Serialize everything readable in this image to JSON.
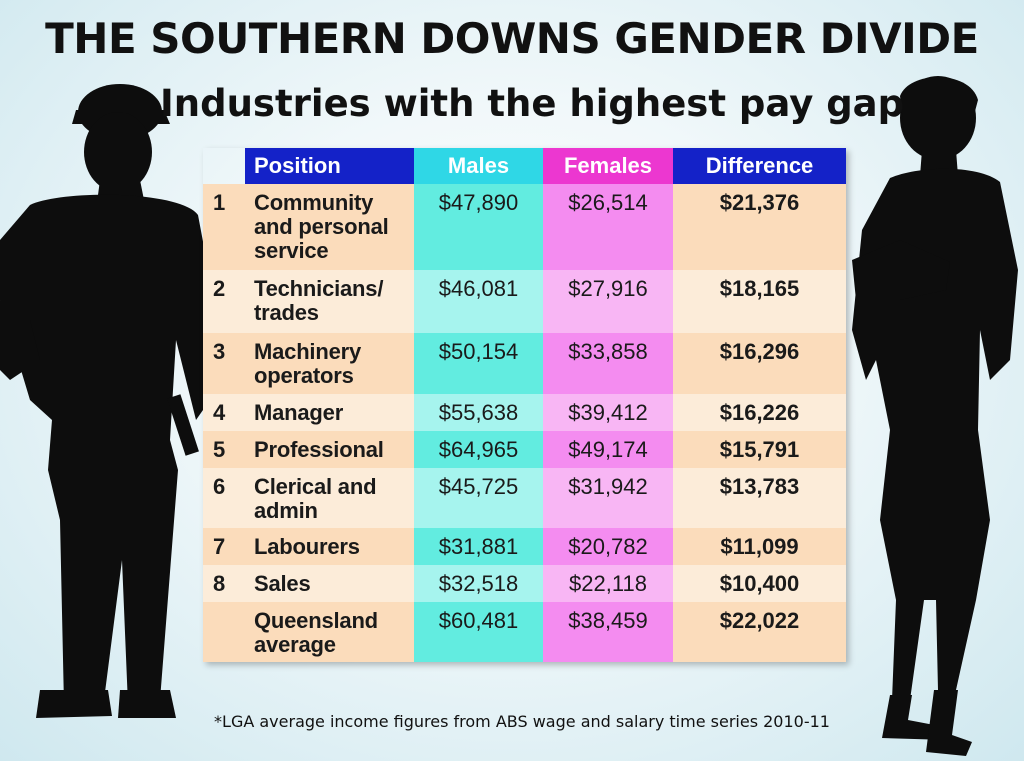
{
  "header": {
    "title": "THE SOUTHERN DOWNS GENDER DIVIDE",
    "subtitle": "Industries with the highest pay gap"
  },
  "colors": {
    "header_blue": "#1422c8",
    "males_cyan": "#2fd7e6",
    "females_magenta": "#ec37d0",
    "row_peach": "#fbdcbb"
  },
  "footnote": "*LGA average income figures from ABS wage and salary time series 2010-11",
  "chart_data": {
    "type": "table",
    "columns": [
      "Position",
      "Males",
      "Females",
      "Difference"
    ],
    "rows": [
      {
        "rank": "1",
        "position": "Community and personal service",
        "males": "$47,890",
        "females": "$26,514",
        "difference": "$21,376"
      },
      {
        "rank": "2",
        "position": "Technicians/ trades",
        "males": "$46,081",
        "females": "$27,916",
        "difference": "$18,165"
      },
      {
        "rank": "3",
        "position": "Machinery operators",
        "males": "$50,154",
        "females": "$33,858",
        "difference": "$16,296"
      },
      {
        "rank": "4",
        "position": "Manager",
        "males": "$55,638",
        "females": "$39,412",
        "difference": "$16,226"
      },
      {
        "rank": "5",
        "position": "Professional",
        "males": "$64,965",
        "females": "$49,174",
        "difference": "$15,791"
      },
      {
        "rank": "6",
        "position": "Clerical and admin",
        "males": "$45,725",
        "females": "$31,942",
        "difference": "$13,783"
      },
      {
        "rank": "7",
        "position": "Labourers",
        "males": "$31,881",
        "females": "$20,782",
        "difference": "$11,099"
      },
      {
        "rank": "8",
        "position": "Sales",
        "males": "$32,518",
        "females": "$22,118",
        "difference": "$10,400"
      },
      {
        "rank": "",
        "position": "Queensland average",
        "males": "$60,481",
        "females": "$38,459",
        "difference": "$22,022"
      }
    ]
  }
}
